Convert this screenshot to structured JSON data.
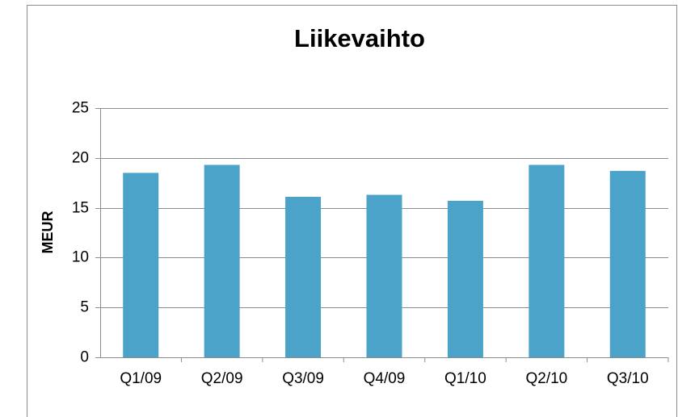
{
  "chart_data": {
    "type": "bar",
    "title": "Liikevaihto",
    "y_label": "MEUR",
    "categories": [
      "Q1/09",
      "Q2/09",
      "Q3/09",
      "Q4/09",
      "Q1/10",
      "Q2/10",
      "Q3/10"
    ],
    "values": [
      18.5,
      19.3,
      16.1,
      16.3,
      15.7,
      19.3,
      18.7
    ],
    "color": "#4ba3c9",
    "ylim": [
      0,
      25
    ],
    "yticks": [
      0,
      5,
      10,
      15,
      20,
      25
    ],
    "grid": true
  }
}
